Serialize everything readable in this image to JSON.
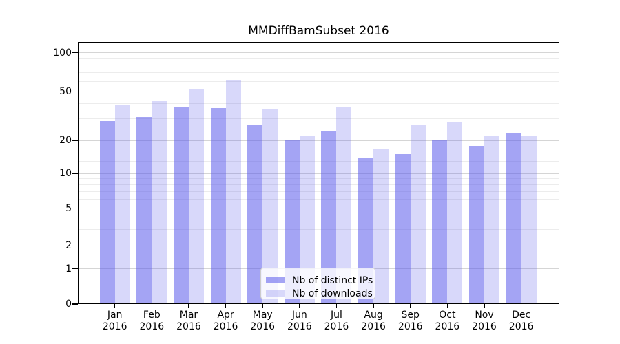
{
  "title": "MMDiffBamSubset 2016",
  "chart_data": {
    "type": "bar",
    "title": "MMDiffBamSubset 2016",
    "categories": [
      "Jan 2016",
      "Feb 2016",
      "Mar 2016",
      "Apr 2016",
      "May 2016",
      "Jun 2016",
      "Jul 2016",
      "Aug 2016",
      "Sep 2016",
      "Oct 2016",
      "Nov 2016",
      "Dec 2016"
    ],
    "series": [
      {
        "name": "Nb of distinct IPs",
        "color": "rgba(90,90,235,0.55)",
        "values": [
          29,
          31,
          38,
          37,
          27,
          20,
          24,
          14,
          15,
          20,
          18,
          23
        ]
      },
      {
        "name": "Nb of downloads",
        "color": "rgba(90,90,235,0.24)",
        "values": [
          39,
          42,
          52,
          62,
          36,
          22,
          38,
          17,
          27,
          28,
          22,
          22
        ]
      }
    ],
    "xlabel": "",
    "ylabel": "",
    "y_ticks": [
      0,
      1,
      2,
      5,
      10,
      20,
      50,
      100
    ],
    "yscale": "symlog",
    "ylim": [
      0,
      120
    ],
    "grid": "on",
    "legend_position": "lower center",
    "background_color": "#ffffff",
    "axis_color": "#000000",
    "major_grid_color": "#d5d5d5",
    "minor_grid_color": "#ececec"
  }
}
